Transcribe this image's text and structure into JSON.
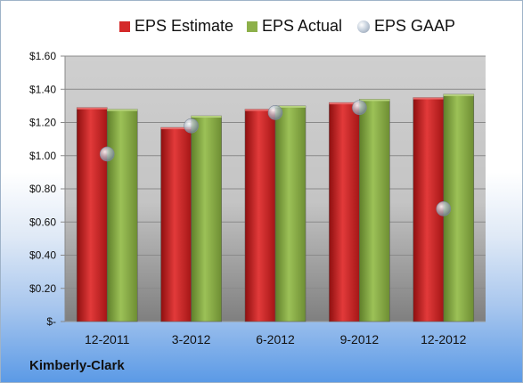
{
  "chart_data": {
    "type": "bar",
    "categories": [
      "12-2011",
      "3-2012",
      "6-2012",
      "9-2012",
      "12-2012"
    ],
    "series": [
      {
        "name": "EPS Estimate",
        "kind": "bar",
        "color": "#d42a2a",
        "values": [
          1.29,
          1.17,
          1.28,
          1.32,
          1.35
        ]
      },
      {
        "name": "EPS Actual",
        "kind": "bar",
        "color": "#8db04a",
        "values": [
          1.28,
          1.24,
          1.3,
          1.34,
          1.37
        ]
      },
      {
        "name": "EPS GAAP",
        "kind": "marker",
        "color": "#a8b4c4",
        "values": [
          1.01,
          1.18,
          1.26,
          1.29,
          0.68
        ]
      }
    ],
    "y_ticks": [
      "$-",
      "$0.20",
      "$0.40",
      "$0.60",
      "$0.80",
      "$1.00",
      "$1.20",
      "$1.40",
      "$1.60"
    ],
    "ylim": [
      0,
      1.6
    ],
    "grid": true,
    "legend_position": "top",
    "footer_label": "Kimberly-Clark"
  }
}
